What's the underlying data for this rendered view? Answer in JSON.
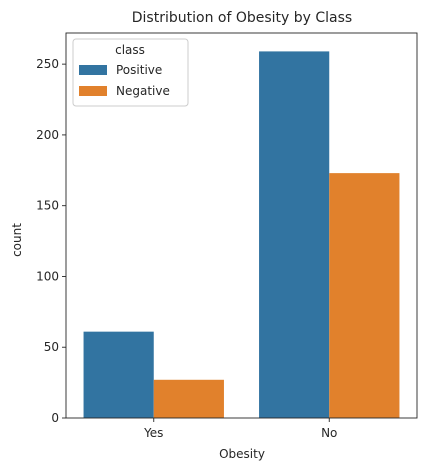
{
  "chart_data": {
    "type": "bar",
    "title": "Distribution of Obesity by Class",
    "xlabel": "Obesity",
    "ylabel": "count",
    "categories": [
      "Yes",
      "No"
    ],
    "series": [
      {
        "name": "Positive",
        "values": [
          61,
          259
        ],
        "color": "#3274a1"
      },
      {
        "name": "Negative",
        "values": [
          27,
          173
        ],
        "color": "#e1812c"
      }
    ],
    "ylim": [
      0,
      272
    ],
    "yticks": [
      0,
      50,
      100,
      150,
      200,
      250
    ],
    "grid": false,
    "legend": {
      "title": "class",
      "placement": "top-left"
    }
  }
}
